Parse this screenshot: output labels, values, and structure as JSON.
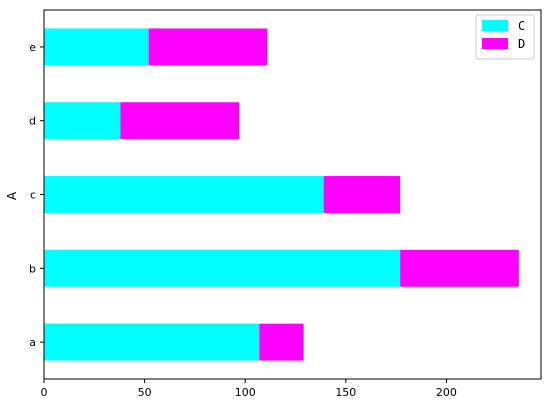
{
  "chart_data": {
    "type": "bar",
    "orientation": "horizontal",
    "stacked": true,
    "categories": [
      "a",
      "b",
      "c",
      "d",
      "e"
    ],
    "series": [
      {
        "name": "C",
        "color": "#00ffff",
        "values": [
          107,
          177,
          139,
          38,
          52
        ]
      },
      {
        "name": "D",
        "color": "#ff00ff",
        "values": [
          22,
          59,
          38,
          59,
          59
        ]
      }
    ],
    "title": "",
    "xlabel": "",
    "ylabel": "A",
    "xlim": [
      0,
      247
    ],
    "xticks": [
      0,
      50,
      100,
      150,
      200
    ],
    "grid": false,
    "legend_position": "top-right"
  }
}
